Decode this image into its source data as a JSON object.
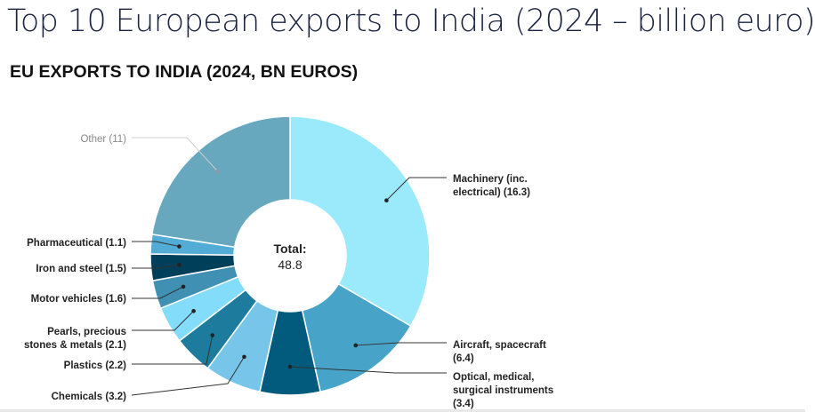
{
  "page": {
    "title": "Top 10 European exports to India (2024 – billion euro)"
  },
  "chart_data": {
    "type": "pie",
    "title": "EU EXPORTS TO INDIA (2024, BN EUROS)",
    "center_label": "Total:",
    "center_value": "48.8",
    "categories": [
      "Machinery (inc. electrical)",
      "Aircraft, spacecraft",
      "Optical, medical, surgical instruments",
      "Chemicals",
      "Plastics",
      "Pearls, precious stones & metals",
      "Motor vehicles",
      "Iron and steel",
      "Pharmaceutical",
      "Other"
    ],
    "values": [
      16.3,
      6.4,
      3.4,
      3.2,
      2.2,
      2.1,
      1.6,
      1.5,
      1.1,
      11
    ],
    "labels": [
      [
        "Machinery (inc.",
        "electrical) (16.3)"
      ],
      [
        "Aircraft, spacecraft",
        "(6.4)"
      ],
      [
        "Optical, medical,",
        "surgical instruments",
        "(3.4)"
      ],
      [
        "Chemicals (3.2)"
      ],
      [
        "Plastics (2.2)"
      ],
      [
        "Pearls, precious",
        "stones & metals (2.1)"
      ],
      [
        "Motor vehicles (1.6)"
      ],
      [
        "Iron and steel (1.5)"
      ],
      [
        "Pharmaceutical (1.1)"
      ],
      [
        "Other (11)"
      ]
    ],
    "colors": [
      "#9aeafc",
      "#47a4c8",
      "#025b7c",
      "#77c6ea",
      "#1d7c9e",
      "#83dcfa",
      "#3f90b3",
      "#003f5a",
      "#53acd6",
      "#67a8bf"
    ]
  }
}
